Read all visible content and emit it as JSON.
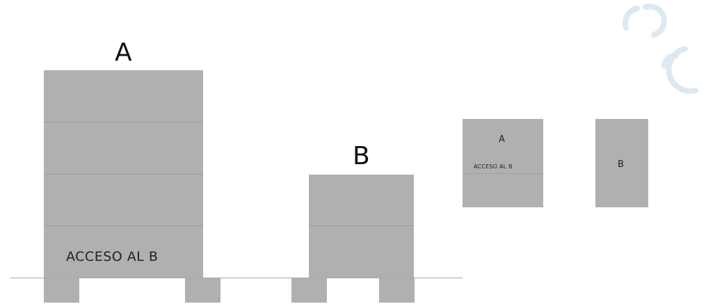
{
  "elevation": {
    "tower_a_label": "A",
    "tower_b_label": "B",
    "ground_floor_label": "ACCESO AL B"
  },
  "plan": {
    "block_a_label": "A",
    "block_a_access_label": "ACCESO AL B",
    "block_b_label": "B"
  },
  "colors": {
    "building_fill": "#b0b0b0",
    "floor_line": "#9a9a9a",
    "background": "#ffffff",
    "logo": "#dde9f0"
  }
}
